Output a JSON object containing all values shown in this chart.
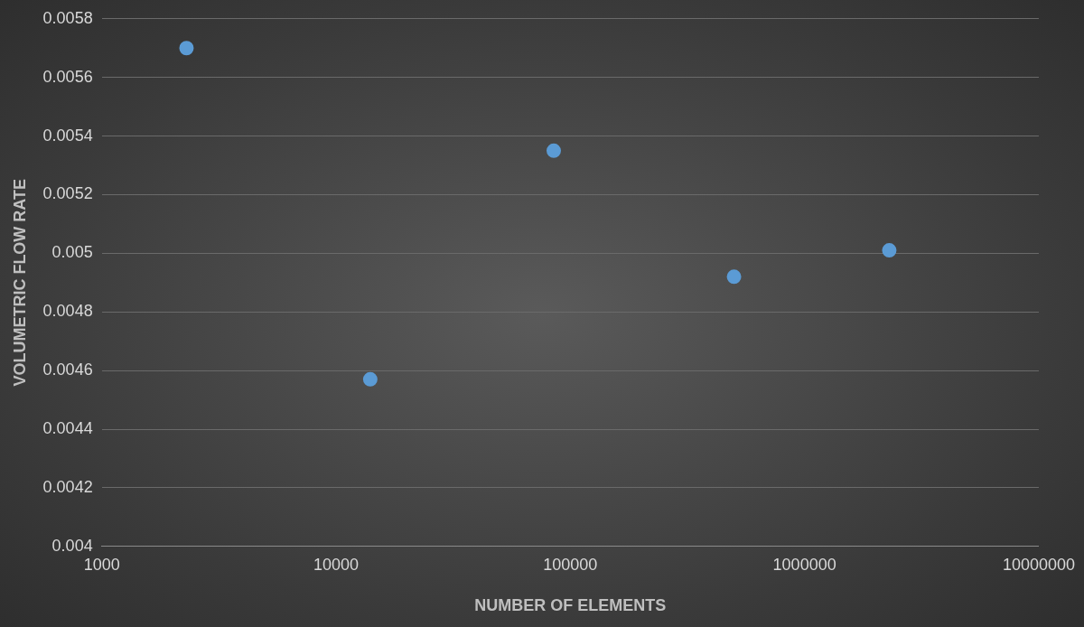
{
  "chart_data": {
    "type": "scatter",
    "xlabel": "NUMBER OF ELEMENTS",
    "ylabel": "VOLUMETRIC FLOW RATE",
    "x": [
      2300,
      14000,
      85000,
      500000,
      2300000
    ],
    "series": [
      {
        "color": "#5b9bd5",
        "values": [
          0.0057,
          0.00457,
          0.00535,
          0.00492,
          0.00501
        ]
      }
    ],
    "log": "x",
    "xlim": [
      1000,
      10000000
    ],
    "xticks": [
      1000,
      10000,
      100000,
      1000000,
      10000000
    ],
    "ylim": [
      0.004,
      0.0058
    ],
    "yticks": [
      0.004,
      0.0042,
      0.0044,
      0.0046,
      0.0048,
      0.005,
      0.0052,
      0.0054,
      0.0056,
      0.0058
    ],
    "grid": "y",
    "legend": false,
    "marker": "circle"
  }
}
